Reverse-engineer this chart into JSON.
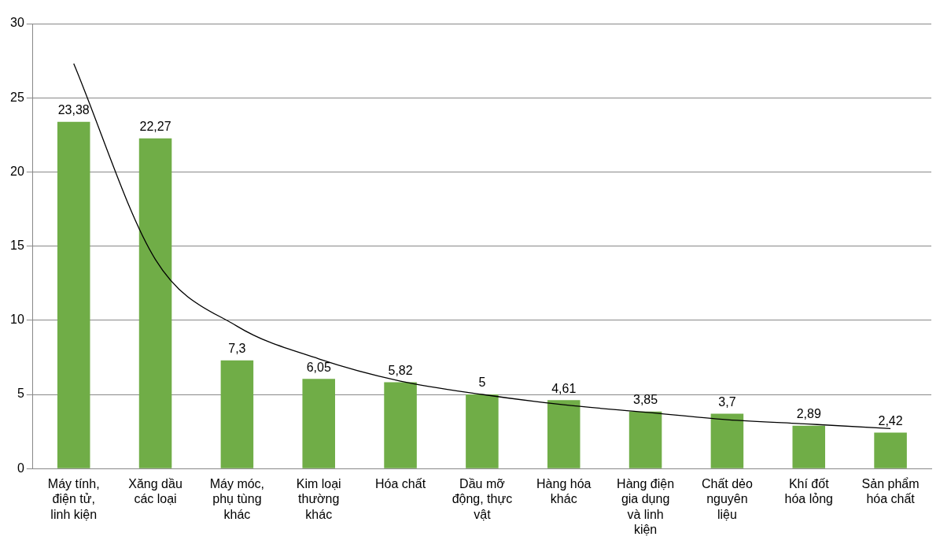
{
  "chart_data": {
    "type": "bar",
    "categories": [
      "Máy tính, điện tử, linh kiện",
      "Xăng dầu các loại",
      "Máy móc, phụ tùng khác",
      "Kim loại thường khác",
      "Hóa chất",
      "Dầu mỡ động, thực vật",
      "Hàng hóa khác",
      "Hàng điện gia dụng và linh kiện",
      "Chất dẻo nguyên liệu",
      "Khí đốt hóa lỏng",
      "Sản phẩm hóa chất"
    ],
    "series": [
      {
        "color": "#70ad47",
        "values": [
          23.38,
          22.27,
          7.3,
          6.05,
          5.82,
          5,
          4.61,
          3.85,
          3.7,
          2.89,
          2.42
        ],
        "value_labels": [
          "23,38",
          "22,27",
          "7,3",
          "6,05",
          "5,82",
          "5",
          "4,61",
          "3,85",
          "3,7",
          "2,89",
          "2,42"
        ]
      },
      {
        "type": "line",
        "color": "#000000",
        "values": [
          27.3,
          14.1,
          9.6,
          7.4,
          5.9,
          5.0,
          4.3,
          3.8,
          3.3,
          3.0,
          2.7
        ]
      }
    ],
    "ylim": [
      0,
      30
    ],
    "yticks": [
      0,
      5,
      10,
      15,
      20,
      25,
      30
    ],
    "grid": "y",
    "legend": false,
    "marker": "none"
  }
}
